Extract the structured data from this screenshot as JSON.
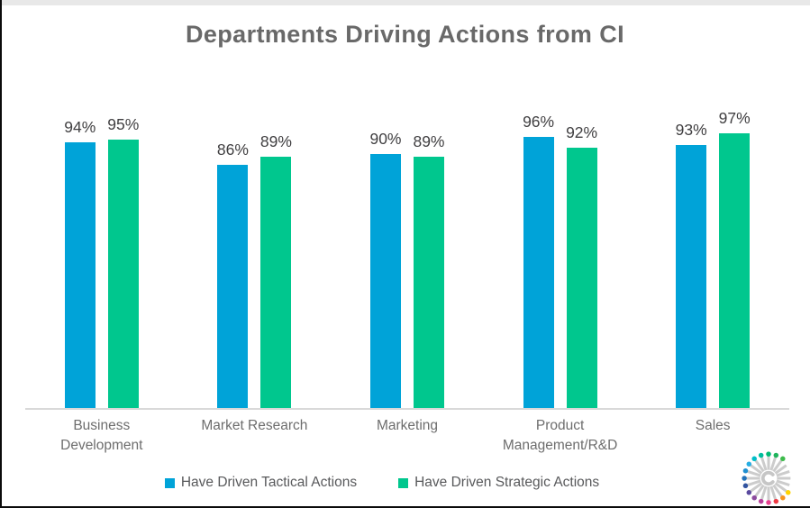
{
  "title": "Departments Driving Actions from CI",
  "chart_data": {
    "type": "bar",
    "title": "Departments Driving Actions from CI",
    "categories": [
      "Business Development",
      "Market Research",
      "Marketing",
      "Product Management/R&D",
      "Sales"
    ],
    "categories_wrapped": [
      [
        "Business",
        "Development"
      ],
      [
        "Market Research"
      ],
      [
        "Marketing"
      ],
      [
        "Product",
        "Management/R&D"
      ],
      [
        "Sales"
      ]
    ],
    "series": [
      {
        "name": "Have Driven Tactical Actions",
        "color": "#00A3D8",
        "values": [
          94,
          86,
          90,
          96,
          93
        ]
      },
      {
        "name": "Have Driven Strategic Actions",
        "color": "#00C78E",
        "values": [
          95,
          89,
          89,
          92,
          97
        ]
      }
    ],
    "value_suffix": "%",
    "ylim": [
      0,
      100
    ],
    "grid": false,
    "data_labels": true,
    "legend_position": "bottom",
    "y_axis_visible": false
  },
  "colors": {
    "background": "#ffffff",
    "title_text": "#696969",
    "value_label_text": "#414042",
    "category_label_text": "#6d6d6d",
    "legend_text": "#58595b",
    "axis_line": "#d9d9d9",
    "top_strip": "#e8e8e8",
    "edge_border": "#0b0b0b"
  },
  "logo": {
    "name": "crayon-starburst-logo",
    "ray_color": "#cccccc",
    "center_c_color": "#c6c6c6",
    "dot_colors": [
      "#3DBB4C",
      "#1FB45C",
      "#00BA75",
      "#00BD9C",
      "#00BEC8",
      "#27AEE3",
      "#1F8FD0",
      "#2272B9",
      "#31539F",
      "#5A4A9F",
      "#8C4B9E",
      "#BB3F9B",
      "#E8428F",
      "#EE3B45",
      "#F7941D",
      "#FFD400"
    ]
  }
}
